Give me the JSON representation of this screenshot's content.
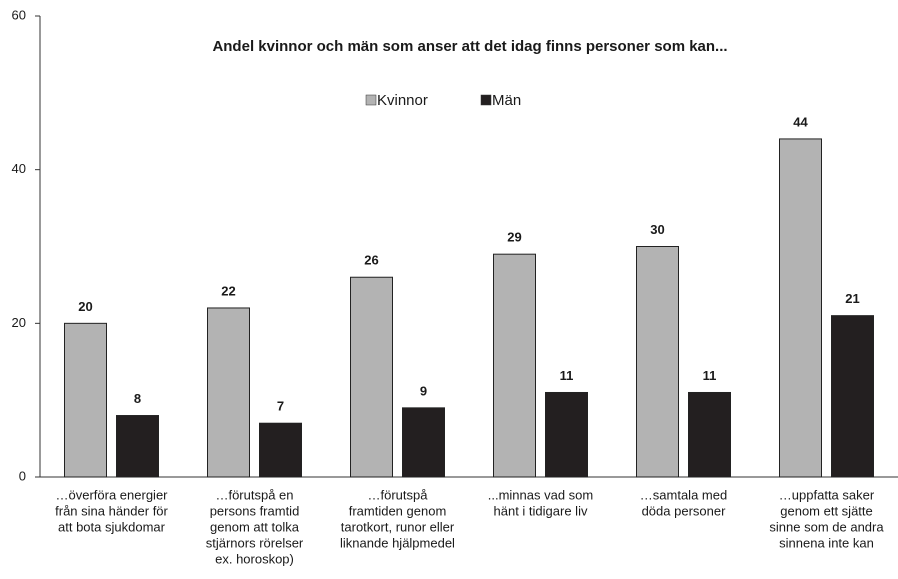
{
  "chart_data": {
    "type": "bar",
    "title": "Andel kvinnor och män som anser att det idag finns personer som kan...",
    "categories": [
      [
        "…överföra energier",
        "från sina händer för",
        "att bota sjukdomar"
      ],
      [
        "…förutspå en",
        "persons framtid",
        "genom att tolka",
        "stjärnors rörelser",
        "ex. horoskop)"
      ],
      [
        "…förutspå",
        "framtiden genom",
        "tarotkort, runor eller",
        "liknande hjälpmedel"
      ],
      [
        "...minnas vad som",
        "hänt i tidigare liv"
      ],
      [
        "…samtala med",
        "döda personer"
      ],
      [
        "…uppfatta saker",
        "genom ett sjätte",
        "sinne som de andra",
        "sinnena inte kan"
      ]
    ],
    "series": [
      {
        "name": "Kvinnor",
        "color": "#b3b3b3",
        "values": [
          20,
          22,
          26,
          29,
          30,
          44
        ]
      },
      {
        "name": "Män",
        "color": "#231f20",
        "values": [
          8,
          7,
          9,
          11,
          11,
          21
        ]
      }
    ],
    "ylim": [
      0,
      60
    ],
    "yticks": [
      0,
      20,
      40,
      60
    ],
    "grid": false,
    "legend": "top"
  }
}
